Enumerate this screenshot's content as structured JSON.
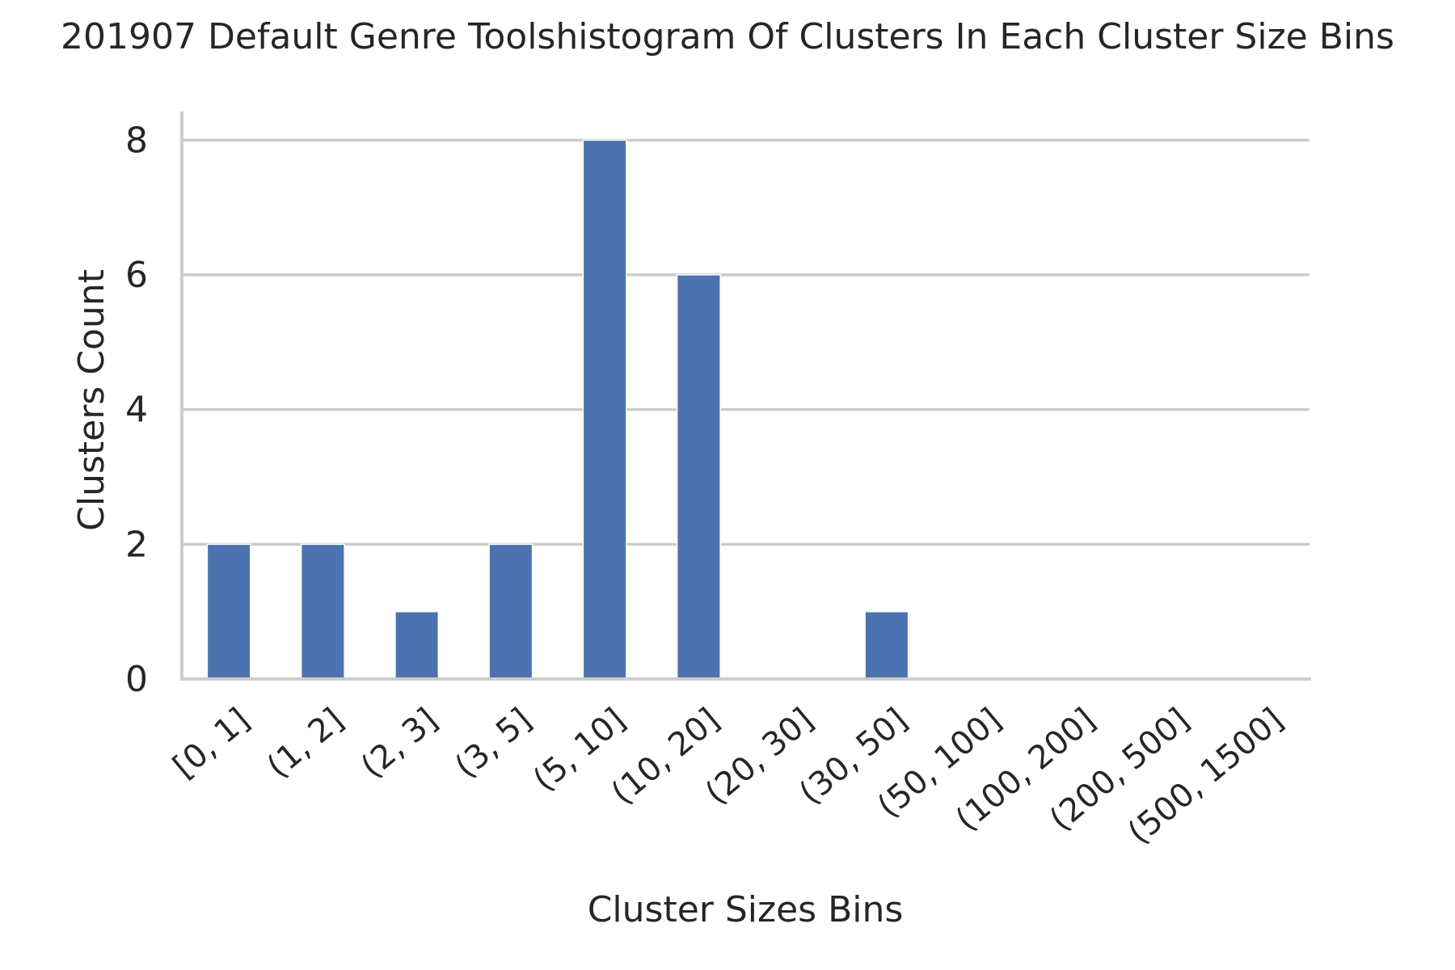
{
  "chart_data": {
    "type": "bar",
    "title": "201907 Default Genre Toolshistogram Of Clusters In Each Cluster Size Bins",
    "xlabel": "Cluster Sizes Bins",
    "ylabel": "Clusters Count",
    "categories": [
      "[0, 1]",
      "(1, 2]",
      "(2, 3]",
      "(3, 5]",
      "(5, 10]",
      "(10, 20]",
      "(20, 30]",
      "(30, 50]",
      "(50, 100]",
      "(100, 200]",
      "(200, 500]",
      "(500, 1500]"
    ],
    "values": [
      2,
      2,
      1,
      2,
      8,
      6,
      0,
      1,
      0,
      0,
      0,
      0
    ],
    "ylim": [
      0,
      8.4
    ],
    "yticks": [
      0,
      2,
      4,
      6,
      8
    ],
    "grid": "horizontal",
    "legend": "none",
    "colors": {
      "bar": "#4c72b0",
      "grid": "#cccccc",
      "axis": "#cccccc",
      "text": "#262626",
      "background": "#ffffff"
    }
  }
}
